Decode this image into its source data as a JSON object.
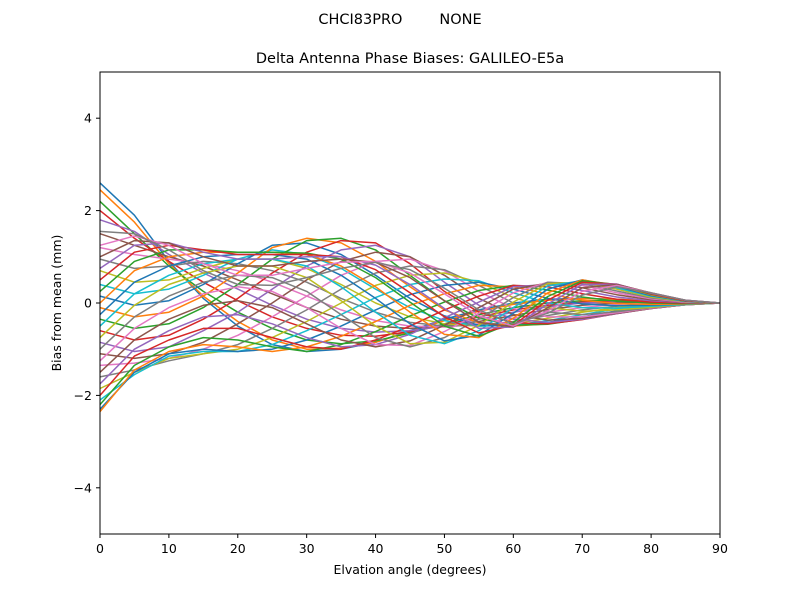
{
  "figure": {
    "suptitle": "CHCI83PRO        NONE"
  },
  "chart_data": {
    "type": "line",
    "title": "Delta Antenna Phase Biases: GALILEO-E5a",
    "xlabel": "Elvation angle (degrees)",
    "ylabel": "Bias from mean (mm)",
    "xlim": [
      0,
      90
    ],
    "ylim": [
      -5,
      5
    ],
    "xticks": [
      0,
      10,
      20,
      30,
      40,
      50,
      60,
      70,
      80,
      90
    ],
    "yticks": [
      -4,
      -2,
      0,
      2,
      4
    ],
    "grid": false,
    "legend": "none",
    "x": [
      0,
      5,
      10,
      15,
      20,
      25,
      30,
      35,
      40,
      45,
      50,
      55,
      60,
      65,
      70,
      75,
      80,
      85,
      90
    ],
    "series_colors": [
      "#1f77b4",
      "#ff7f0e",
      "#2ca02c",
      "#d62728",
      "#9467bd",
      "#8c564b",
      "#e377c2",
      "#7f7f7f",
      "#bcbd22",
      "#17becf"
    ],
    "series": [
      {
        "values": [
          2.6,
          1.9,
          0.9,
          0.1,
          -0.5,
          -0.9,
          -1.05,
          -1.0,
          -0.85,
          -0.6,
          -0.35,
          -0.15,
          0.0,
          0.08,
          0.1,
          0.08,
          0.05,
          0.02,
          0.0
        ]
      },
      {
        "values": [
          2.45,
          1.75,
          0.85,
          0.15,
          -0.4,
          -0.8,
          -1.0,
          -0.98,
          -0.85,
          -0.62,
          -0.38,
          -0.18,
          -0.03,
          0.06,
          0.09,
          0.08,
          0.05,
          0.02,
          0.0
        ]
      },
      {
        "values": [
          2.2,
          1.5,
          0.8,
          0.25,
          -0.2,
          -0.55,
          -0.8,
          -0.88,
          -0.82,
          -0.65,
          -0.45,
          -0.25,
          -0.1,
          0.0,
          0.05,
          0.05,
          0.03,
          0.01,
          0.0
        ]
      },
      {
        "values": [
          2.0,
          1.4,
          0.9,
          0.45,
          0.05,
          -0.3,
          -0.55,
          -0.7,
          -0.72,
          -0.62,
          -0.48,
          -0.3,
          -0.15,
          -0.05,
          0.02,
          0.03,
          0.02,
          0.01,
          0.0
        ]
      },
      {
        "values": [
          1.8,
          1.55,
          1.05,
          0.65,
          0.3,
          -0.05,
          -0.35,
          -0.55,
          -0.63,
          -0.6,
          -0.5,
          -0.35,
          -0.2,
          -0.08,
          0.0,
          0.02,
          0.02,
          0.01,
          0.0
        ]
      },
      {
        "values": [
          1.5,
          1.25,
          1.0,
          0.8,
          0.5,
          0.2,
          -0.1,
          -0.35,
          -0.5,
          -0.55,
          -0.5,
          -0.4,
          -0.27,
          -0.14,
          -0.05,
          0.0,
          0.01,
          0.01,
          0.0
        ]
      },
      {
        "values": [
          1.2,
          1.05,
          0.95,
          0.85,
          0.7,
          0.45,
          0.15,
          -0.15,
          -0.38,
          -0.5,
          -0.52,
          -0.45,
          -0.33,
          -0.2,
          -0.1,
          -0.03,
          0.0,
          0.0,
          0.0
        ]
      },
      {
        "values": [
          0.95,
          0.75,
          0.8,
          0.9,
          0.85,
          0.7,
          0.45,
          0.1,
          -0.2,
          -0.42,
          -0.5,
          -0.48,
          -0.4,
          -0.27,
          -0.15,
          -0.07,
          -0.02,
          0.0,
          0.0
        ]
      },
      {
        "values": [
          0.7,
          0.45,
          0.5,
          0.75,
          0.95,
          0.95,
          0.75,
          0.4,
          0.0,
          -0.3,
          -0.45,
          -0.5,
          -0.45,
          -0.33,
          -0.2,
          -0.1,
          -0.04,
          -0.01,
          0.0
        ]
      },
      {
        "values": [
          0.4,
          0.2,
          0.3,
          0.6,
          0.95,
          1.15,
          1.05,
          0.75,
          0.3,
          -0.1,
          -0.38,
          -0.5,
          -0.48,
          -0.38,
          -0.25,
          -0.13,
          -0.06,
          -0.02,
          0.0
        ]
      },
      {
        "values": [
          0.15,
          -0.05,
          0.05,
          0.4,
          0.85,
          1.25,
          1.3,
          1.05,
          0.6,
          0.1,
          -0.28,
          -0.48,
          -0.5,
          -0.42,
          -0.3,
          -0.17,
          -0.08,
          -0.02,
          0.0
        ]
      },
      {
        "values": [
          -0.1,
          -0.3,
          -0.2,
          0.15,
          0.65,
          1.2,
          1.4,
          1.3,
          0.9,
          0.35,
          -0.15,
          -0.43,
          -0.5,
          -0.45,
          -0.33,
          -0.2,
          -0.1,
          -0.03,
          0.0
        ]
      },
      {
        "values": [
          -0.35,
          -0.55,
          -0.45,
          -0.1,
          0.4,
          0.95,
          1.35,
          1.4,
          1.15,
          0.6,
          0.05,
          -0.33,
          -0.48,
          -0.46,
          -0.35,
          -0.22,
          -0.11,
          -0.03,
          0.0
        ]
      },
      {
        "values": [
          -0.6,
          -0.8,
          -0.7,
          -0.35,
          0.1,
          0.65,
          1.1,
          1.35,
          1.3,
          0.85,
          0.25,
          -0.2,
          -0.43,
          -0.45,
          -0.36,
          -0.23,
          -0.12,
          -0.04,
          0.0
        ]
      },
      {
        "values": [
          -0.85,
          -1.05,
          -0.95,
          -0.6,
          -0.2,
          0.3,
          0.8,
          1.15,
          1.25,
          1.0,
          0.45,
          -0.05,
          -0.35,
          -0.42,
          -0.35,
          -0.23,
          -0.12,
          -0.04,
          0.0
        ]
      },
      {
        "values": [
          -1.1,
          -1.2,
          -1.1,
          -0.85,
          -0.45,
          0.0,
          0.5,
          0.9,
          1.1,
          1.0,
          0.6,
          0.1,
          -0.25,
          -0.37,
          -0.33,
          -0.22,
          -0.12,
          -0.04,
          0.0
        ]
      },
      {
        "values": [
          -1.35,
          -1.3,
          -1.2,
          -1.0,
          -0.7,
          -0.3,
          0.15,
          0.6,
          0.9,
          0.95,
          0.7,
          0.25,
          -0.12,
          -0.3,
          -0.3,
          -0.21,
          -0.11,
          -0.04,
          0.0
        ]
      },
      {
        "values": [
          -1.6,
          -1.45,
          -1.25,
          -1.1,
          -0.9,
          -0.55,
          -0.15,
          0.3,
          0.65,
          0.8,
          0.72,
          0.38,
          0.0,
          -0.2,
          -0.25,
          -0.19,
          -0.1,
          -0.04,
          0.0
        ]
      },
      {
        "values": [
          -1.85,
          -1.5,
          -1.2,
          -1.1,
          -1.0,
          -0.75,
          -0.4,
          0.0,
          0.38,
          0.6,
          0.65,
          0.45,
          0.12,
          -0.1,
          -0.18,
          -0.15,
          -0.09,
          -0.03,
          0.0
        ]
      },
      {
        "values": [
          -2.1,
          -1.55,
          -1.15,
          -1.05,
          -1.05,
          -0.9,
          -0.6,
          -0.25,
          0.12,
          0.4,
          0.52,
          0.48,
          0.22,
          0.0,
          -0.1,
          -0.11,
          -0.07,
          -0.03,
          0.0
        ]
      },
      {
        "values": [
          -2.3,
          -1.5,
          -1.1,
          -1.0,
          -1.05,
          -1.0,
          -0.8,
          -0.5,
          -0.15,
          0.18,
          0.38,
          0.45,
          0.3,
          0.1,
          -0.02,
          -0.06,
          -0.05,
          -0.02,
          0.0
        ]
      },
      {
        "values": [
          -2.35,
          -1.45,
          -1.05,
          -0.9,
          -0.95,
          -1.05,
          -0.95,
          -0.72,
          -0.4,
          -0.05,
          0.2,
          0.38,
          0.35,
          0.2,
          0.06,
          -0.01,
          -0.03,
          -0.02,
          0.0
        ]
      },
      {
        "values": [
          -2.2,
          -1.35,
          -0.95,
          -0.75,
          -0.8,
          -0.95,
          -1.05,
          -0.9,
          -0.62,
          -0.28,
          0.02,
          0.27,
          0.38,
          0.28,
          0.13,
          0.04,
          0.0,
          -0.01,
          0.0
        ]
      },
      {
        "values": [
          -2.0,
          -1.15,
          -0.8,
          -0.55,
          -0.55,
          -0.75,
          -0.95,
          -1.0,
          -0.8,
          -0.5,
          -0.15,
          0.15,
          0.38,
          0.35,
          0.2,
          0.08,
          0.02,
          0.0,
          0.0
        ]
      },
      {
        "values": [
          -1.75,
          -1.0,
          -0.6,
          -0.3,
          -0.25,
          -0.45,
          -0.75,
          -0.95,
          -0.9,
          -0.68,
          -0.32,
          0.02,
          0.35,
          0.4,
          0.27,
          0.13,
          0.05,
          0.01,
          0.0
        ]
      },
      {
        "values": [
          -1.5,
          -0.8,
          -0.35,
          -0.05,
          0.05,
          -0.1,
          -0.45,
          -0.8,
          -0.95,
          -0.82,
          -0.48,
          -0.1,
          0.3,
          0.43,
          0.33,
          0.18,
          0.07,
          0.02,
          0.0
        ]
      },
      {
        "values": [
          -1.25,
          -0.55,
          -0.1,
          0.2,
          0.35,
          0.25,
          -0.1,
          -0.55,
          -0.9,
          -0.92,
          -0.62,
          -0.22,
          0.22,
          0.45,
          0.38,
          0.22,
          0.09,
          0.02,
          0.0
        ]
      },
      {
        "values": [
          -1.0,
          -0.3,
          0.15,
          0.45,
          0.6,
          0.55,
          0.25,
          -0.25,
          -0.75,
          -0.95,
          -0.75,
          -0.35,
          0.12,
          0.45,
          0.42,
          0.26,
          0.11,
          0.03,
          0.0
        ]
      },
      {
        "values": [
          -0.75,
          -0.05,
          0.4,
          0.65,
          0.8,
          0.8,
          0.55,
          0.05,
          -0.5,
          -0.88,
          -0.85,
          -0.48,
          0.02,
          0.42,
          0.45,
          0.3,
          0.13,
          0.03,
          0.0
        ]
      },
      {
        "values": [
          -0.5,
          0.2,
          0.6,
          0.85,
          0.95,
          0.95,
          0.8,
          0.35,
          -0.2,
          -0.7,
          -0.88,
          -0.6,
          -0.1,
          0.37,
          0.48,
          0.33,
          0.15,
          0.04,
          0.0
        ]
      },
      {
        "values": [
          -0.25,
          0.45,
          0.8,
          1.0,
          1.05,
          1.05,
          0.95,
          0.6,
          0.1,
          -0.45,
          -0.82,
          -0.7,
          -0.22,
          0.3,
          0.5,
          0.36,
          0.16,
          0.04,
          0.0
        ]
      },
      {
        "values": [
          0.0,
          0.7,
          1.0,
          1.1,
          1.1,
          1.1,
          1.05,
          0.8,
          0.35,
          -0.2,
          -0.68,
          -0.75,
          -0.33,
          0.22,
          0.5,
          0.38,
          0.18,
          0.05,
          0.0
        ]
      },
      {
        "values": [
          0.25,
          0.9,
          1.15,
          1.15,
          1.1,
          1.1,
          1.08,
          0.95,
          0.55,
          0.02,
          -0.5,
          -0.72,
          -0.42,
          0.14,
          0.48,
          0.4,
          0.19,
          0.05,
          0.0
        ]
      },
      {
        "values": [
          0.5,
          1.1,
          1.25,
          1.15,
          1.05,
          1.05,
          1.05,
          1.0,
          0.72,
          0.22,
          -0.3,
          -0.65,
          -0.48,
          0.06,
          0.45,
          0.41,
          0.2,
          0.05,
          0.0
        ]
      },
      {
        "values": [
          0.75,
          1.25,
          1.3,
          1.1,
          0.95,
          0.95,
          1.0,
          1.0,
          0.82,
          0.4,
          -0.12,
          -0.55,
          -0.52,
          -0.02,
          0.4,
          0.41,
          0.21,
          0.06,
          0.0
        ]
      },
      {
        "values": [
          1.0,
          1.35,
          1.3,
          1.0,
          0.8,
          0.8,
          0.9,
          0.95,
          0.88,
          0.55,
          0.05,
          -0.42,
          -0.52,
          -0.1,
          0.33,
          0.4,
          0.22,
          0.06,
          0.0
        ]
      },
      {
        "values": [
          1.25,
          1.45,
          1.25,
          0.85,
          0.6,
          0.6,
          0.75,
          0.88,
          0.9,
          0.65,
          0.2,
          -0.28,
          -0.5,
          -0.17,
          0.25,
          0.38,
          0.22,
          0.06,
          0.0
        ]
      },
      {
        "values": [
          1.55,
          1.5,
          1.15,
          0.7,
          0.4,
          0.38,
          0.55,
          0.75,
          0.88,
          0.72,
          0.32,
          -0.15,
          -0.45,
          -0.22,
          0.17,
          0.35,
          0.22,
          0.06,
          0.0
        ]
      }
    ]
  }
}
